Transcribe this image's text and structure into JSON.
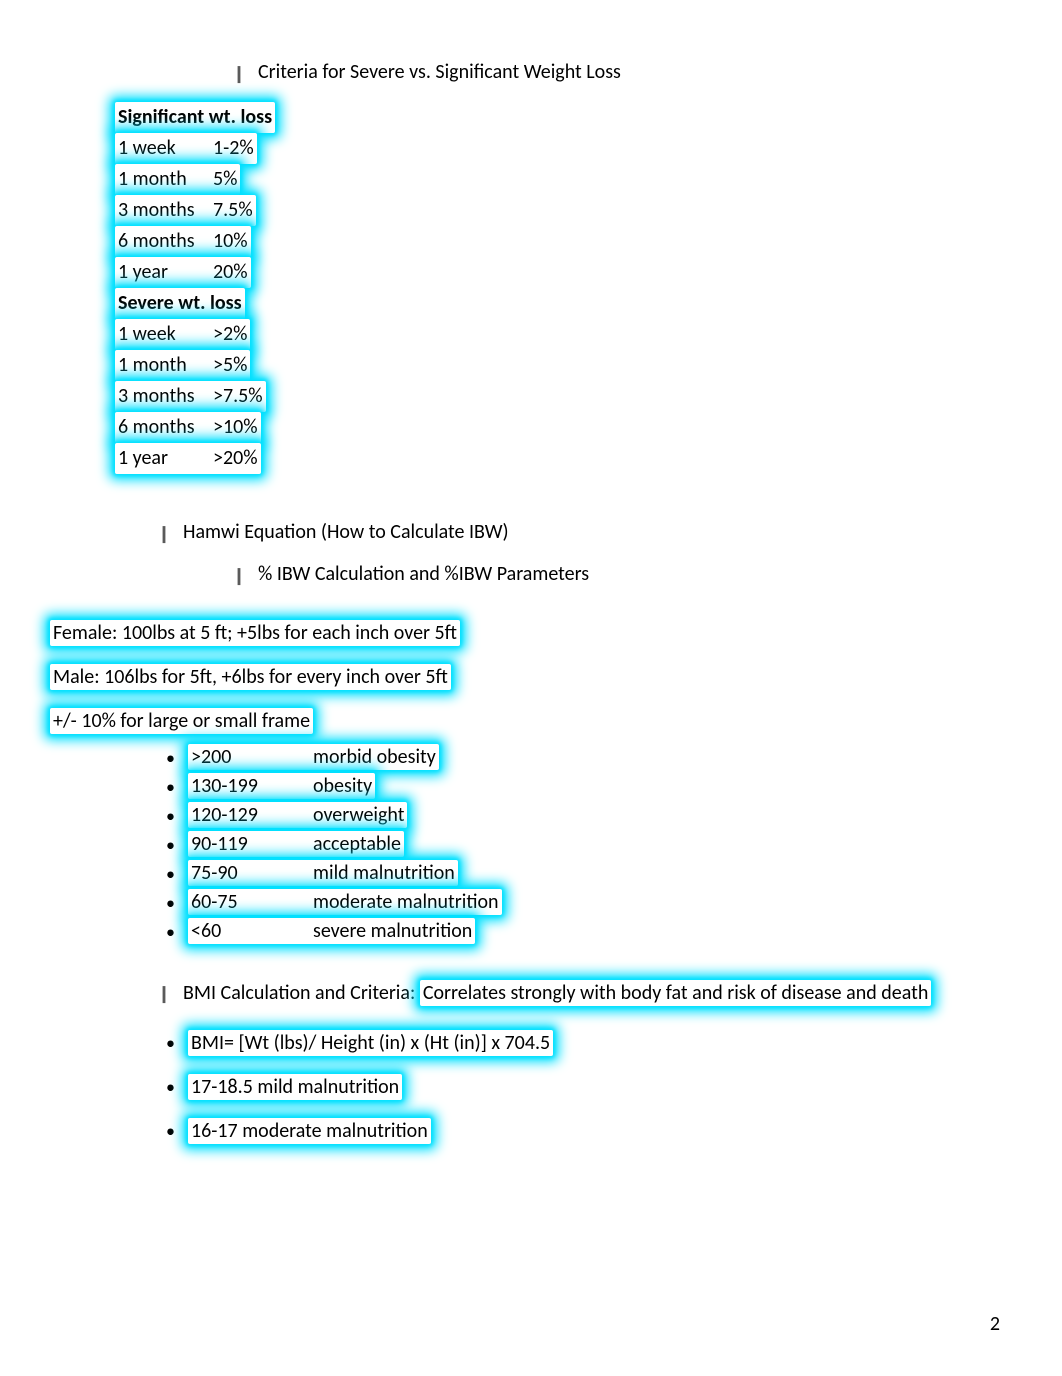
{
  "colors": {
    "highlight_glow": "#00e0ff",
    "text": "#000000",
    "bullet_gray": "#5a5a5a",
    "background": "#ffffff"
  },
  "typography": {
    "base_fontsize": 20,
    "font_family": "Calibri"
  },
  "heading1": "Criteria for Severe vs. Significant Weight Loss",
  "wt_loss_table": {
    "significant": {
      "title": "Significant wt. loss",
      "rows": [
        {
          "period": "1 week",
          "value": "1-2%"
        },
        {
          "period": "1 month",
          "value": "5%"
        },
        {
          "period": "3 months",
          "value": "7.5%"
        },
        {
          "period": "6 months",
          "value": "10%"
        },
        {
          "period": "1 year",
          "value": "20%"
        }
      ]
    },
    "severe": {
      "title": "Severe wt. loss",
      "rows": [
        {
          "period": "1 week",
          "value": ">2%"
        },
        {
          "period": "1 month",
          "value": ">5%"
        },
        {
          "period": "3 months",
          "value": ">7.5%"
        },
        {
          "period": "6 months",
          "value": ">10%"
        },
        {
          "period": "1 year",
          "value": ">20%"
        }
      ]
    }
  },
  "heading2": "Hamwi Equation (How to Calculate IBW)",
  "heading3": "% IBW Calculation and %IBW Parameters",
  "hamwi": {
    "female": "Female: 100lbs at 5 ft; +5lbs for each inch over 5ft",
    "male": "Male: 106lbs for 5ft, +6lbs for every inch over 5ft",
    "frame": "+/- 10% for large or small frame"
  },
  "ibw_params": [
    {
      "range": ">200",
      "label": "morbid obesity"
    },
    {
      "range": "130-199",
      "label": "obesity"
    },
    {
      "range": "120-129",
      "label": "overweight"
    },
    {
      "range": "90-119",
      "label": "acceptable"
    },
    {
      "range": "75-90",
      "label": "mild malnutrition"
    },
    {
      "range": "60-75",
      "label": "moderate malnutrition"
    },
    {
      "range": "<60",
      "label": "severe malnutrition"
    }
  ],
  "bmi_heading_prefix": "BMI Calculation and Criteria: ",
  "bmi_heading_hl": "Correlates strongly with body fat and risk of disease and death",
  "bmi_items": [
    "BMI= [Wt (lbs)/ Height (in) x (Ht (in)] x 704.5",
    "17-18.5 mild malnutrition",
    "16-17 moderate malnutrition"
  ],
  "page_number": "2"
}
